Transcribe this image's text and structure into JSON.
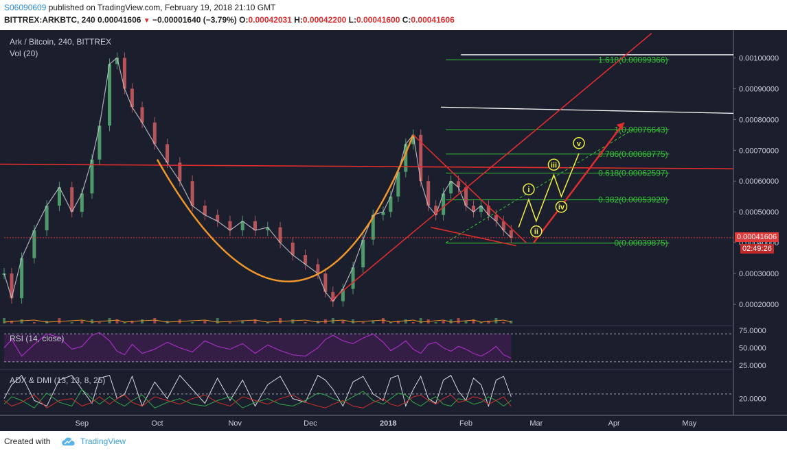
{
  "header": {
    "author": "S06090609",
    "published_text": "published on TradingView.com, February 19, 2018 21:10 GMT",
    "symbol": "BITTREX:ARKBTC, 240",
    "last": "0.00041606",
    "change": "−0.00001640 (−3.79%)",
    "o_label": "O:",
    "o_value": "0.00042031",
    "h_label": "H:",
    "h_value": "0.00042200",
    "l_label": "L:",
    "l_value": "0.00041600",
    "c_label": "C:",
    "c_value": "0.00041606"
  },
  "panels": {
    "main_title": "Ark / Bitcoin, 240, BITTREX",
    "vol_title": "Vol (20)",
    "rsi_title": "RSI (14, close)",
    "adx_title": "ADX & DMI (13, 13, 8, 25)"
  },
  "price_badge": "0.00041606",
  "time_badge": "02:49:26",
  "footer": {
    "created_with": "Created with",
    "tradingview": "TradingView"
  },
  "colors": {
    "background": "#1b1e2d",
    "fib": "#3ac43a",
    "trend_red": "#e02d2d",
    "cup_orange": "#f0962a",
    "wave_yellow": "#f2f040",
    "rsi_purple": "#a42fc0",
    "white_line": "#ffffff"
  },
  "chart_data": {
    "type": "line",
    "title": "Ark / Bitcoin, 240, BITTREX",
    "x_ticks": [
      "Sep",
      "Oct",
      "Nov",
      "Dec",
      "2018",
      "Feb",
      "Mar",
      "Apr",
      "May"
    ],
    "price_axis_ticks": [
      "0.00100000",
      "0.00090000",
      "0.00080000",
      "0.00070000",
      "0.00060000",
      "0.00050000",
      "0.00040000",
      "0.00030000",
      "0.00020000"
    ],
    "ylim": [
      0.00014,
      0.00109
    ],
    "price_series": {
      "name": "ARKBTC",
      "x": [
        "2017-08-01",
        "2017-08-04",
        "2017-08-08",
        "2017-08-13",
        "2017-08-18",
        "2017-08-23",
        "2017-08-28",
        "2017-09-01",
        "2017-09-05",
        "2017-09-08",
        "2017-09-12",
        "2017-09-15",
        "2017-09-18",
        "2017-09-21",
        "2017-09-25",
        "2017-09-30",
        "2017-10-05",
        "2017-10-10",
        "2017-10-15",
        "2017-10-20",
        "2017-10-25",
        "2017-10-30",
        "2017-11-04",
        "2017-11-09",
        "2017-11-14",
        "2017-11-19",
        "2017-11-24",
        "2017-11-29",
        "2017-12-04",
        "2017-12-07",
        "2017-12-10",
        "2017-12-14",
        "2017-12-18",
        "2017-12-22",
        "2017-12-26",
        "2017-12-30",
        "2018-01-02",
        "2018-01-05",
        "2018-01-08",
        "2018-01-11",
        "2018-01-14",
        "2018-01-17",
        "2018-01-20",
        "2018-01-23",
        "2018-01-26",
        "2018-01-29",
        "2018-02-01",
        "2018-02-04",
        "2018-02-07",
        "2018-02-10",
        "2018-02-13",
        "2018-02-16",
        "2018-02-19"
      ],
      "y": [
        0.0003,
        0.00022,
        0.00035,
        0.00044,
        0.00052,
        0.00058,
        0.0005,
        0.00056,
        0.00067,
        0.00078,
        0.00098,
        0.001,
        0.0009,
        0.00084,
        0.00079,
        0.00072,
        0.00066,
        0.0006,
        0.00052,
        0.00049,
        0.00047,
        0.00044,
        0.00047,
        0.00044,
        0.00045,
        0.0004,
        0.00036,
        0.00033,
        0.0003,
        0.00024,
        0.00021,
        0.00025,
        0.00032,
        0.00041,
        0.00049,
        0.0005,
        0.00055,
        0.00063,
        0.00072,
        0.00075,
        0.0006,
        0.00052,
        0.00049,
        0.00056,
        0.0006,
        0.00058,
        0.00052,
        0.0005,
        0.00052,
        0.00049,
        0.00047,
        0.00044,
        0.00041606
      ]
    },
    "fibonacci": [
      {
        "level": "1.618",
        "label": "1.618(0.00099366)",
        "value": 0.00099366
      },
      {
        "level": "1",
        "label": "1(0.00076643)",
        "value": 0.00076643
      },
      {
        "level": "0.786",
        "label": "0.786(0.00068775)",
        "value": 0.00068775
      },
      {
        "level": "0.618",
        "label": "0.618(0.00062597)",
        "value": 0.00062597
      },
      {
        "level": "0.382",
        "label": "0.382(0.00053920)",
        "value": 0.0005392
      },
      {
        "level": "0",
        "label": "0(0.00039875)",
        "value": 0.00039875
      }
    ],
    "elliott_waves": [
      {
        "label": "i",
        "date": "2018-02-26",
        "value": 0.00054
      },
      {
        "label": "ii",
        "date": "2018-03-01",
        "value": 0.00047
      },
      {
        "label": "iii",
        "date": "2018-03-08",
        "value": 0.00062
      },
      {
        "label": "iv",
        "date": "2018-03-11",
        "value": 0.00055
      },
      {
        "label": "v",
        "date": "2018-03-18",
        "value": 0.00069
      }
    ],
    "wave_path": [
      {
        "date": "2018-02-22",
        "value": 0.00045
      },
      {
        "date": "2018-02-26",
        "value": 0.00054
      },
      {
        "date": "2018-03-01",
        "value": 0.00047
      },
      {
        "date": "2018-03-08",
        "value": 0.00062
      },
      {
        "date": "2018-03-11",
        "value": 0.00055
      },
      {
        "date": "2018-03-18",
        "value": 0.00069
      }
    ],
    "rsi": {
      "title": "RSI (14, close)",
      "ticks": [
        "75.0000",
        "50.0000",
        "25.0000"
      ],
      "ylim": [
        20,
        80
      ],
      "bands": [
        70,
        30
      ],
      "values": [
        50,
        62,
        38,
        55,
        70,
        65,
        48,
        52,
        68,
        72,
        60,
        45,
        40,
        55,
        42,
        48,
        58,
        50,
        44,
        60,
        52,
        48,
        56,
        42,
        54,
        46,
        40,
        38,
        50,
        62,
        68,
        60,
        56,
        64,
        70,
        58,
        46,
        52,
        60,
        48,
        42,
        55,
        58,
        50,
        45,
        52,
        48,
        42,
        38,
        44,
        52,
        40,
        35
      ]
    },
    "adx_dmi": {
      "title": "ADX & DMI (13, 13, 8, 25)",
      "ticks": [
        "20.0000"
      ],
      "ylim": [
        5,
        50
      ],
      "threshold": 25,
      "adx": [
        20,
        35,
        45,
        18,
        12,
        40,
        45,
        30,
        15,
        42,
        45,
        20,
        25,
        44,
        12,
        38,
        20,
        45,
        30,
        15,
        42,
        18,
        40,
        12,
        35,
        44,
        20,
        16,
        45,
        40,
        30,
        12,
        38,
        44,
        25,
        18,
        42,
        45,
        12,
        30,
        44,
        20,
        15,
        40,
        45,
        28,
        18,
        42,
        35,
        12,
        40,
        44,
        22
      ],
      "di_plus": [
        14,
        22,
        18,
        10,
        26,
        16,
        12,
        30,
        20,
        14,
        22,
        16,
        12,
        18,
        24,
        10,
        16,
        20,
        14,
        12,
        18,
        22,
        10,
        16,
        20,
        14,
        12,
        18,
        26,
        24,
        20,
        16,
        22,
        28,
        18,
        14,
        20,
        26,
        24,
        16,
        12,
        18,
        22,
        14,
        12,
        20,
        18,
        14,
        16,
        22,
        18,
        12,
        18
      ],
      "di_minus": [
        18,
        12,
        16,
        24,
        10,
        18,
        20,
        12,
        16,
        22,
        14,
        20,
        24,
        16,
        12,
        22,
        18,
        14,
        20,
        24,
        16,
        12,
        22,
        18,
        14,
        20,
        24,
        16,
        12,
        10,
        14,
        18,
        12,
        10,
        16,
        20,
        14,
        12,
        16,
        22,
        24,
        18,
        14,
        20,
        24,
        16,
        18,
        22,
        20,
        14,
        18,
        22,
        12
      ]
    }
  }
}
